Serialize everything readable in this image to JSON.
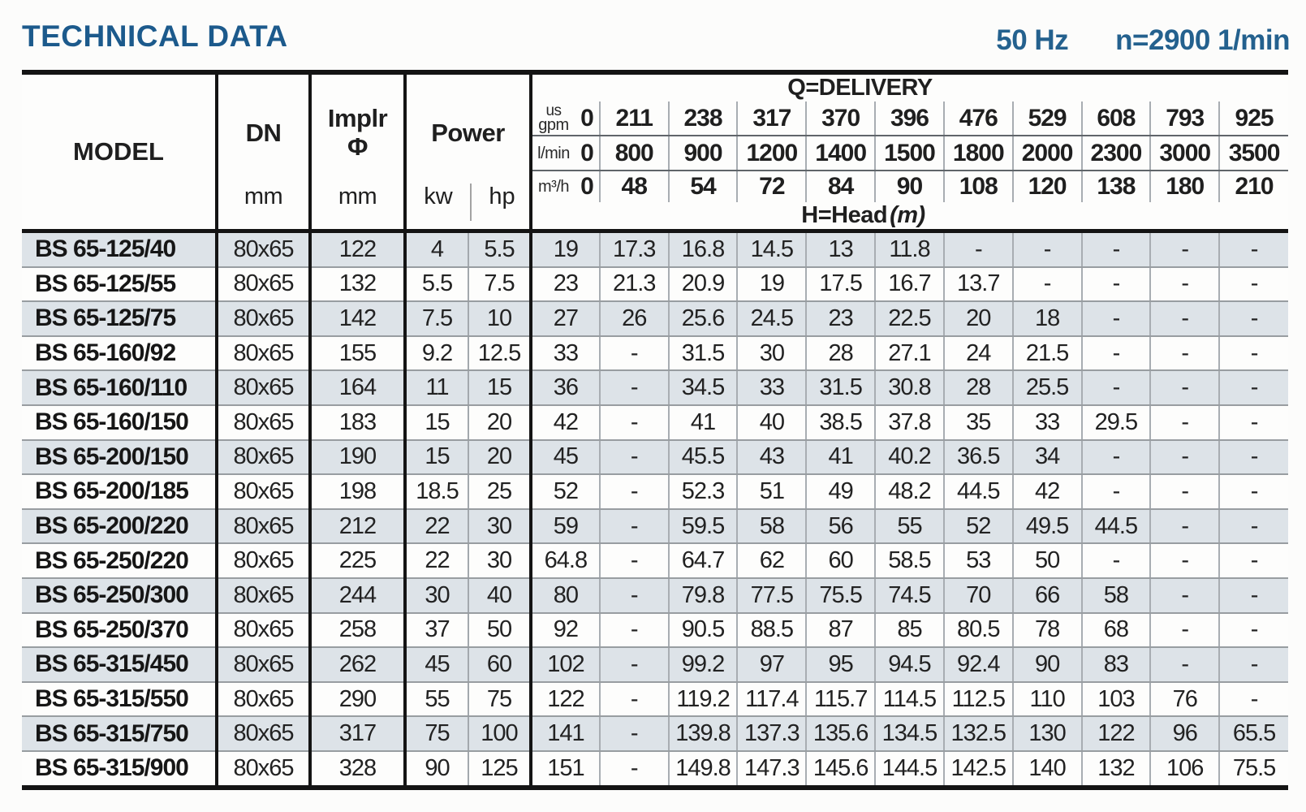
{
  "header": {
    "title": "TECHNICAL DATA",
    "frequency": "50 Hz",
    "speed": "n=2900 1/min"
  },
  "table": {
    "headers": {
      "model": "MODEL",
      "dn": "DN",
      "dn_unit": "mm",
      "impeller": "Implr",
      "impeller_symbol": "Φ",
      "impeller_unit": "mm",
      "power": "Power",
      "power_kw": "kw",
      "power_hp": "hp",
      "delivery": "Q=DELIVERY",
      "head": "H=Head",
      "head_unit": "(m)"
    },
    "unit_rows": [
      {
        "unit_top": "us",
        "unit": "gpm",
        "values": [
          "0",
          "211",
          "238",
          "317",
          "370",
          "396",
          "476",
          "529",
          "608",
          "793",
          "925"
        ]
      },
      {
        "unit": "l/min",
        "values": [
          "0",
          "800",
          "900",
          "1200",
          "1400",
          "1500",
          "1800",
          "2000",
          "2300",
          "3000",
          "3500"
        ]
      },
      {
        "unit": "m³/h",
        "values": [
          "0",
          "48",
          "54",
          "72",
          "84",
          "90",
          "108",
          "120",
          "138",
          "180",
          "210"
        ]
      }
    ],
    "rows": [
      {
        "model": "BS 65-125/40",
        "dn": "80x65",
        "implr": "122",
        "kw": "4",
        "hp": "5.5",
        "heads": [
          "19",
          "17.3",
          "16.8",
          "14.5",
          "13",
          "11.8",
          "-",
          "-",
          "-",
          "-",
          "-"
        ]
      },
      {
        "model": "BS 65-125/55",
        "dn": "80x65",
        "implr": "132",
        "kw": "5.5",
        "hp": "7.5",
        "heads": [
          "23",
          "21.3",
          "20.9",
          "19",
          "17.5",
          "16.7",
          "13.7",
          "-",
          "-",
          "-",
          "-"
        ]
      },
      {
        "model": "BS 65-125/75",
        "dn": "80x65",
        "implr": "142",
        "kw": "7.5",
        "hp": "10",
        "heads": [
          "27",
          "26",
          "25.6",
          "24.5",
          "23",
          "22.5",
          "20",
          "18",
          "-",
          "-",
          "-"
        ]
      },
      {
        "model": "BS 65-160/92",
        "dn": "80x65",
        "implr": "155",
        "kw": "9.2",
        "hp": "12.5",
        "heads": [
          "33",
          "-",
          "31.5",
          "30",
          "28",
          "27.1",
          "24",
          "21.5",
          "-",
          "-",
          "-"
        ]
      },
      {
        "model": "BS 65-160/110",
        "dn": "80x65",
        "implr": "164",
        "kw": "11",
        "hp": "15",
        "heads": [
          "36",
          "-",
          "34.5",
          "33",
          "31.5",
          "30.8",
          "28",
          "25.5",
          "-",
          "-",
          "-"
        ]
      },
      {
        "model": "BS 65-160/150",
        "dn": "80x65",
        "implr": "183",
        "kw": "15",
        "hp": "20",
        "heads": [
          "42",
          "-",
          "41",
          "40",
          "38.5",
          "37.8",
          "35",
          "33",
          "29.5",
          "-",
          "-"
        ]
      },
      {
        "model": "BS 65-200/150",
        "dn": "80x65",
        "implr": "190",
        "kw": "15",
        "hp": "20",
        "heads": [
          "45",
          "-",
          "45.5",
          "43",
          "41",
          "40.2",
          "36.5",
          "34",
          "-",
          "-",
          "-"
        ]
      },
      {
        "model": "BS 65-200/185",
        "dn": "80x65",
        "implr": "198",
        "kw": "18.5",
        "hp": "25",
        "heads": [
          "52",
          "-",
          "52.3",
          "51",
          "49",
          "48.2",
          "44.5",
          "42",
          "-",
          "-",
          "-"
        ]
      },
      {
        "model": "BS 65-200/220",
        "dn": "80x65",
        "implr": "212",
        "kw": "22",
        "hp": "30",
        "heads": [
          "59",
          "-",
          "59.5",
          "58",
          "56",
          "55",
          "52",
          "49.5",
          "44.5",
          "-",
          "-"
        ]
      },
      {
        "model": "BS 65-250/220",
        "dn": "80x65",
        "implr": "225",
        "kw": "22",
        "hp": "30",
        "heads": [
          "64.8",
          "-",
          "64.7",
          "62",
          "60",
          "58.5",
          "53",
          "50",
          "-",
          "-",
          "-"
        ]
      },
      {
        "model": "BS 65-250/300",
        "dn": "80x65",
        "implr": "244",
        "kw": "30",
        "hp": "40",
        "heads": [
          "80",
          "-",
          "79.8",
          "77.5",
          "75.5",
          "74.5",
          "70",
          "66",
          "58",
          "-",
          "-"
        ]
      },
      {
        "model": "BS 65-250/370",
        "dn": "80x65",
        "implr": "258",
        "kw": "37",
        "hp": "50",
        "heads": [
          "92",
          "-",
          "90.5",
          "88.5",
          "87",
          "85",
          "80.5",
          "78",
          "68",
          "-",
          "-"
        ]
      },
      {
        "model": "BS 65-315/450",
        "dn": "80x65",
        "implr": "262",
        "kw": "45",
        "hp": "60",
        "heads": [
          "102",
          "-",
          "99.2",
          "97",
          "95",
          "94.5",
          "92.4",
          "90",
          "83",
          "-",
          "-"
        ]
      },
      {
        "model": "BS 65-315/550",
        "dn": "80x65",
        "implr": "290",
        "kw": "55",
        "hp": "75",
        "heads": [
          "122",
          "-",
          "119.2",
          "117.4",
          "115.7",
          "114.5",
          "112.5",
          "110",
          "103",
          "76",
          "-"
        ]
      },
      {
        "model": "BS 65-315/750",
        "dn": "80x65",
        "implr": "317",
        "kw": "75",
        "hp": "100",
        "heads": [
          "141",
          "-",
          "139.8",
          "137.3",
          "135.6",
          "134.5",
          "132.5",
          "130",
          "122",
          "96",
          "65.5"
        ]
      },
      {
        "model": "BS 65-315/900",
        "dn": "80x65",
        "implr": "328",
        "kw": "90",
        "hp": "125",
        "heads": [
          "151",
          "-",
          "149.8",
          "147.3",
          "145.6",
          "144.5",
          "142.5",
          "140",
          "132",
          "106",
          "75.5"
        ]
      }
    ]
  },
  "colors": {
    "accent_blue": "#1c5a8c",
    "row_stripe": "#dde3e8",
    "grid_dark": "#141414",
    "grid_light": "#a8adb2"
  }
}
